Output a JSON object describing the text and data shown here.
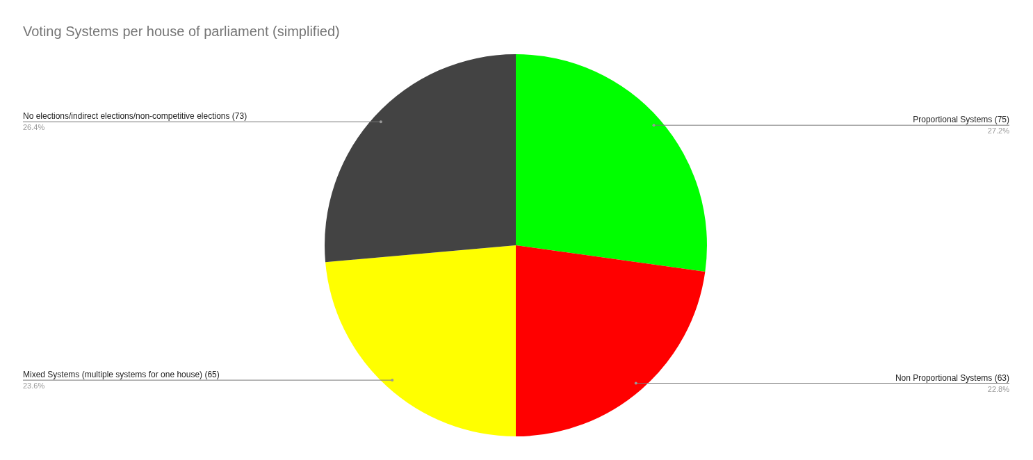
{
  "chart_data": {
    "type": "pie",
    "title": "Voting Systems per house of parliament (simplified)",
    "categories": [
      "Proportional Systems (75)",
      "Non Proportional Systems (63)",
      "Mixed Systems (multiple systems for one house) (65)",
      "No elections/indirect elections/non-competitive elections (73)"
    ],
    "values": [
      27.2,
      22.8,
      23.6,
      26.4
    ],
    "value_labels": [
      "27.2%",
      "22.8%",
      "23.6%",
      "26.4%"
    ],
    "colors": [
      "#00ff00",
      "#ff0000",
      "#ffff00",
      "#434343"
    ],
    "legend": false
  }
}
